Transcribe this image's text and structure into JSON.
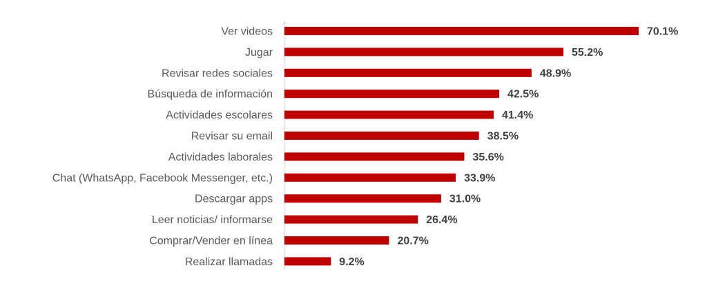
{
  "chart_data": {
    "type": "bar",
    "orientation": "horizontal",
    "categories": [
      "Ver videos",
      "Jugar",
      "Revisar redes sociales",
      "Búsqueda de información",
      "Actividades escolares",
      "Revisar su email",
      "Actividades laborales",
      "Chat (WhatsApp, Facebook Messenger, etc.)",
      "Descargar apps",
      "Leer noticias/ informarse",
      "Comprar/Vender en línea",
      "Realizar llamadas"
    ],
    "values": [
      70.1,
      55.2,
      48.9,
      42.5,
      41.4,
      38.5,
      35.6,
      33.9,
      31.0,
      26.4,
      20.7,
      9.2
    ],
    "value_labels": [
      "70.1%",
      "55.2%",
      "48.9%",
      "42.5%",
      "41.4%",
      "38.5%",
      "35.6%",
      "33.9%",
      "31.0%",
      "26.4%",
      "20.7%",
      "9.2%"
    ],
    "xlim": [
      0,
      70.1
    ],
    "grid": false,
    "legend": "none",
    "bar_color": "#c00000"
  }
}
